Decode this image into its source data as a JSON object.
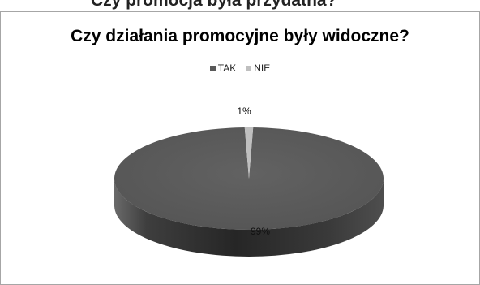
{
  "top_strip_text": "Czy promocja była przydatna?",
  "chart_data": {
    "type": "pie",
    "title": "Czy działania promocyjne były widoczne?",
    "categories": [
      "TAK",
      "NIE"
    ],
    "values": [
      99,
      1
    ],
    "labels": [
      "99%",
      "1%"
    ],
    "colors": [
      "#595959",
      "#bfbfbf"
    ],
    "legend_position": "top",
    "style": "3d"
  }
}
